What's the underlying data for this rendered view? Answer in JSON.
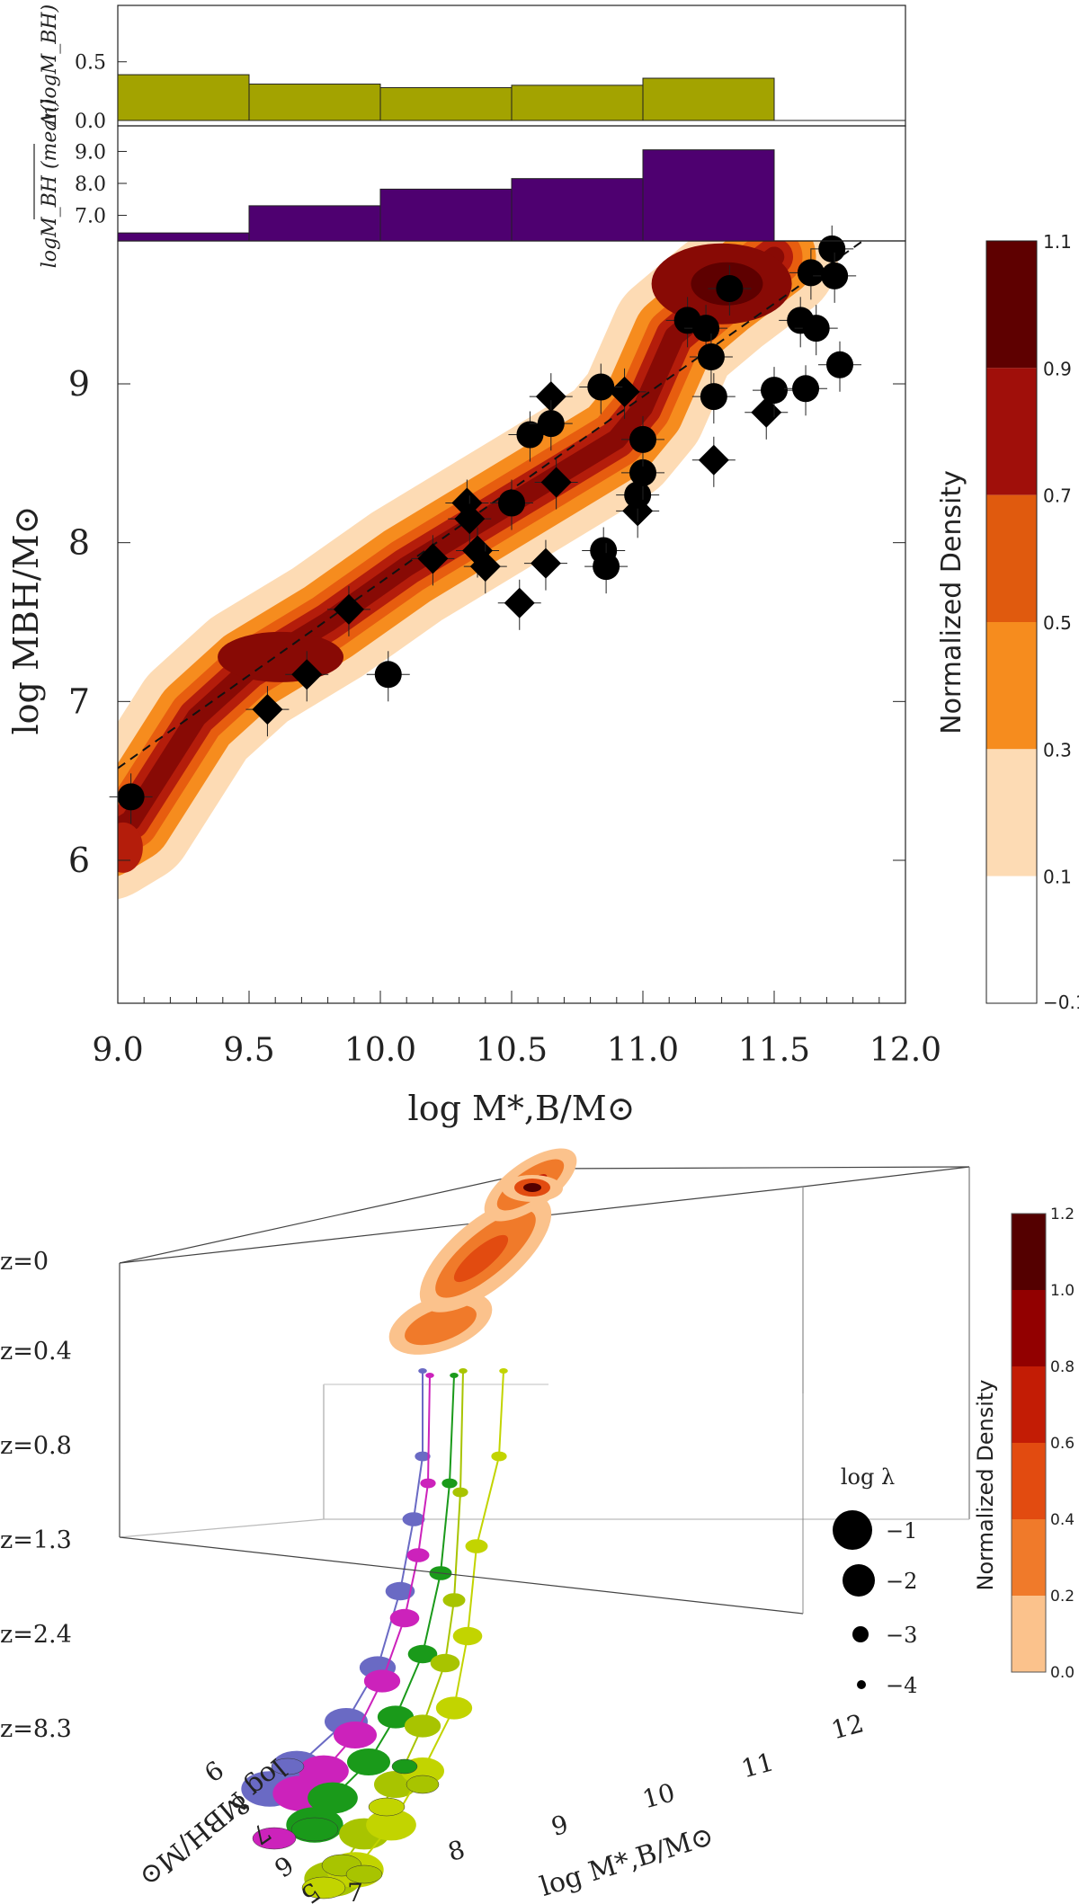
{
  "chart_data": [
    {
      "type": "bar",
      "panel": "top-scatter-delta-histogram",
      "categories": [
        "9.0-9.5",
        "9.5-10.0",
        "10.0-10.5",
        "10.5-11.0",
        "11.0-11.5"
      ],
      "values": [
        0.39,
        0.31,
        0.28,
        0.3,
        0.36
      ],
      "ylabel": "Δ(logM_BH)",
      "yticks": [
        "0.0",
        "0.5"
      ],
      "ylim": [
        0,
        0.95
      ],
      "color": "#a3a300"
    },
    {
      "type": "bar",
      "panel": "top-scatter-mean-histogram",
      "categories": [
        "9.0-9.5",
        "9.5-10.0",
        "10.0-10.5",
        "10.5-11.0",
        "11.0-11.5"
      ],
      "values": [
        6.45,
        7.3,
        7.82,
        8.15,
        9.05
      ],
      "ylabel": "logM_BH (mean)",
      "yticks": [
        "7.0",
        "8.0",
        "9.0"
      ],
      "ylim": [
        6.2,
        9.8
      ],
      "color": "#4e0070"
    },
    {
      "type": "scatter",
      "panel": "main-density",
      "xlabel": "log M*,B/M⊙",
      "ylabel": "log MBH/M⊙",
      "xlim": [
        9.0,
        12.0
      ],
      "ylim": [
        5.1,
        9.9
      ],
      "xticks": [
        "9.0",
        "9.5",
        "10.0",
        "10.5",
        "11.0",
        "11.5",
        "12.0"
      ],
      "yticks": [
        "6",
        "7",
        "8",
        "9"
      ],
      "fit_line": {
        "slope": 1.17,
        "intercept": -3.95,
        "style": "dashed"
      },
      "density_levels": [
        0.1,
        0.3,
        0.5,
        0.7,
        0.9,
        1.1
      ],
      "density_colors": [
        "#fddbb4",
        "#f68c1e",
        "#e75d0f",
        "#b41d0b",
        "#880a05",
        "#5e0000"
      ],
      "circles": [
        {
          "x": 9.05,
          "y": 6.4
        },
        {
          "x": 10.03,
          "y": 7.17
        },
        {
          "x": 10.5,
          "y": 8.25
        },
        {
          "x": 10.57,
          "y": 8.68
        },
        {
          "x": 10.65,
          "y": 8.75
        },
        {
          "x": 10.84,
          "y": 8.98
        },
        {
          "x": 10.85,
          "y": 7.95
        },
        {
          "x": 10.86,
          "y": 7.85
        },
        {
          "x": 10.98,
          "y": 8.3
        },
        {
          "x": 11.0,
          "y": 8.44
        },
        {
          "x": 11.0,
          "y": 8.65
        },
        {
          "x": 11.17,
          "y": 9.4
        },
        {
          "x": 11.24,
          "y": 9.35
        },
        {
          "x": 11.26,
          "y": 9.17
        },
        {
          "x": 11.27,
          "y": 8.92
        },
        {
          "x": 11.33,
          "y": 9.6
        },
        {
          "x": 11.5,
          "y": 8.96
        },
        {
          "x": 11.6,
          "y": 9.4
        },
        {
          "x": 11.62,
          "y": 8.97
        },
        {
          "x": 11.64,
          "y": 9.7
        },
        {
          "x": 11.66,
          "y": 9.35
        },
        {
          "x": 11.72,
          "y": 9.85
        },
        {
          "x": 11.73,
          "y": 9.68
        },
        {
          "x": 11.75,
          "y": 9.12
        }
      ],
      "diamonds": [
        {
          "x": 9.57,
          "y": 6.95
        },
        {
          "x": 9.72,
          "y": 7.17
        },
        {
          "x": 9.88,
          "y": 7.58
        },
        {
          "x": 10.2,
          "y": 7.9
        },
        {
          "x": 10.33,
          "y": 8.25
        },
        {
          "x": 10.34,
          "y": 8.15
        },
        {
          "x": 10.37,
          "y": 7.95
        },
        {
          "x": 10.4,
          "y": 7.85
        },
        {
          "x": 10.53,
          "y": 7.62
        },
        {
          "x": 10.63,
          "y": 7.87
        },
        {
          "x": 10.65,
          "y": 8.92
        },
        {
          "x": 10.67,
          "y": 8.38
        },
        {
          "x": 10.93,
          "y": 8.95
        },
        {
          "x": 10.98,
          "y": 8.2
        },
        {
          "x": 11.27,
          "y": 8.52
        },
        {
          "x": 11.47,
          "y": 8.82
        }
      ],
      "colorbar": {
        "label": "Normalized Density",
        "ticks": [
          "1.1",
          "0.9",
          "0.7",
          "0.5",
          "0.3",
          "0.1",
          "−0.1"
        ]
      }
    },
    {
      "type": "scatter",
      "panel": "3d-evolution",
      "xlabel": "log M*,B/M⊙",
      "ylabel": "log MBH/M⊙",
      "x_ticks": [
        "8",
        "9",
        "10",
        "11",
        "12"
      ],
      "x_lead": "7",
      "y_ticks": [
        "5",
        "6",
        "7",
        "8",
        "9"
      ],
      "z_labels": [
        "z=0",
        "z=0.4",
        "z=0.8",
        "z=1.3",
        "z=2.4",
        "z=8.3"
      ],
      "size_legend": {
        "title": "log λ",
        "entries": [
          "−1",
          "−2",
          "−3",
          "−4"
        ]
      },
      "track_colors": [
        "#6a6ac4",
        "#cc22bb",
        "#1a9a1a",
        "#a8c400",
        "#c2d400"
      ],
      "colorbar": {
        "label": "Normalized Density",
        "ticks": [
          "1.2",
          "1.0",
          "0.8",
          "0.6",
          "0.4",
          "0.2",
          "0.0"
        ],
        "colors": [
          "#ffffff",
          "#fbc28c",
          "#f07a2a",
          "#e24b10",
          "#c31c05",
          "#920000",
          "#540000"
        ]
      }
    }
  ]
}
